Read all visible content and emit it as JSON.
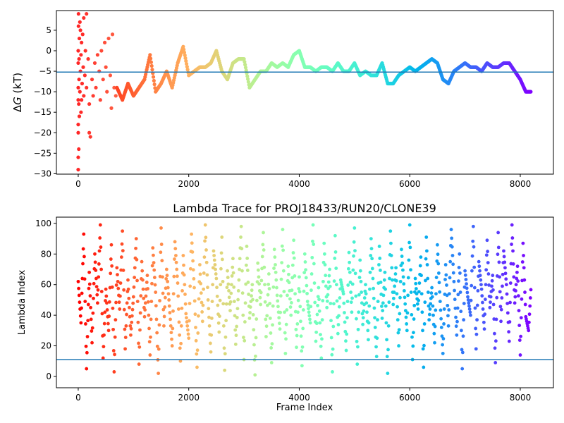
{
  "chart_data": [
    {
      "type": "scatter",
      "title": "",
      "xlabel": "",
      "ylabel": "ΔG (kT)",
      "ylabel_parts": {
        "delta": "Δ",
        "var": "G",
        "unit": " (kT)"
      },
      "xlim": [
        -395,
        8600
      ],
      "ylim": [
        -30.1,
        9.8
      ],
      "xticks": [
        0,
        2000,
        4000,
        6000,
        8000
      ],
      "yticks": [
        5,
        0,
        -5,
        -10,
        -15,
        -20,
        -25,
        -30
      ],
      "grid": false,
      "colormap": "rainbow (reversed by frame index)",
      "hline": {
        "y": -5.2,
        "color": "#1f77b4"
      },
      "early_points": [
        [
          0,
          -29
        ],
        [
          0,
          -26
        ],
        [
          0,
          -20
        ],
        [
          0,
          -18
        ],
        [
          0,
          -12
        ],
        [
          0,
          -9
        ],
        [
          0,
          -3
        ],
        [
          0,
          0
        ],
        [
          5,
          6
        ],
        [
          5,
          9
        ],
        [
          10,
          -24
        ],
        [
          10,
          -13
        ],
        [
          15,
          -7
        ],
        [
          15,
          -2
        ],
        [
          20,
          3
        ],
        [
          20,
          -16
        ],
        [
          30,
          7
        ],
        [
          30,
          -10
        ],
        [
          40,
          -5
        ],
        [
          40,
          5
        ],
        [
          50,
          -15
        ],
        [
          50,
          -1
        ],
        [
          60,
          2
        ],
        [
          60,
          -12
        ],
        [
          70,
          -8
        ],
        [
          80,
          4
        ],
        [
          90,
          -4
        ],
        [
          100,
          8
        ],
        [
          100,
          -11
        ],
        [
          120,
          -6
        ],
        [
          130,
          0
        ],
        [
          150,
          9
        ],
        [
          150,
          -9
        ],
        [
          180,
          -2
        ],
        [
          200,
          -13
        ],
        [
          200,
          -20
        ],
        [
          220,
          -21
        ],
        [
          250,
          -7
        ],
        [
          270,
          -11
        ],
        [
          300,
          -3
        ],
        [
          320,
          -9
        ],
        [
          350,
          -1
        ],
        [
          380,
          -5
        ],
        [
          400,
          -12
        ],
        [
          420,
          0
        ],
        [
          450,
          -7
        ],
        [
          480,
          2
        ],
        [
          500,
          -4
        ],
        [
          520,
          -10
        ],
        [
          550,
          3
        ],
        [
          580,
          -6
        ],
        [
          600,
          -14
        ],
        [
          620,
          4
        ],
        [
          650,
          -9
        ],
        [
          680,
          -11
        ]
      ],
      "trace": {
        "x": [
          700,
          800,
          900,
          1000,
          1100,
          1200,
          1300,
          1400,
          1500,
          1600,
          1700,
          1800,
          1900,
          2000,
          2100,
          2200,
          2300,
          2400,
          2500,
          2600,
          2700,
          2800,
          2900,
          3000,
          3100,
          3200,
          3300,
          3400,
          3500,
          3600,
          3700,
          3800,
          3900,
          4000,
          4100,
          4200,
          4300,
          4400,
          4500,
          4600,
          4700,
          4800,
          4900,
          5000,
          5100,
          5200,
          5300,
          5400,
          5500,
          5600,
          5700,
          5800,
          5900,
          6000,
          6100,
          6200,
          6300,
          6400,
          6500,
          6600,
          6700,
          6800,
          6900,
          7000,
          7100,
          7200,
          7300,
          7400,
          7500,
          7600,
          7700,
          7800,
          7900,
          8000,
          8100,
          8200
        ],
        "y": [
          -9,
          -12,
          -8,
          -11,
          -9,
          -7,
          -1,
          -10,
          -8,
          -5,
          -9,
          -3,
          1,
          -6,
          -5,
          -4,
          -4,
          -3,
          0,
          -5,
          -7,
          -3,
          -2,
          -2,
          -9,
          -7,
          -5,
          -5,
          -3,
          -4,
          -3,
          -4,
          -1,
          0,
          -4,
          -4,
          -5,
          -4,
          -4,
          -5,
          -3,
          -5,
          -5,
          -3,
          -6,
          -5,
          -6,
          -6,
          -3,
          -8,
          -8,
          -6,
          -5,
          -4,
          -5,
          -4,
          -3,
          -2,
          -3,
          -7,
          -8,
          -5,
          -4,
          -3,
          -4,
          -4,
          -5,
          -3,
          -4,
          -4,
          -3,
          -3,
          -5,
          -7,
          -10,
          -10
        ]
      }
    },
    {
      "type": "scatter",
      "title": "Lambda Trace for PROJ18433/RUN20/CLONE39",
      "xlabel": "Frame Index",
      "ylabel": "Lambda Index",
      "xlim": [
        -395,
        8600
      ],
      "ylim": [
        -7.4,
        104.1
      ],
      "xticks": [
        0,
        2000,
        4000,
        6000,
        8000
      ],
      "yticks": [
        0,
        20,
        40,
        60,
        80,
        100
      ],
      "grid": false,
      "colormap": "rainbow (reversed by frame index)",
      "hline": {
        "y": 11,
        "color": "#1f77b4"
      },
      "x_step": 50,
      "lambda": [
        62,
        35,
        93,
        5,
        68,
        22,
        80,
        48,
        99,
        12,
        57,
        30,
        86,
        3,
        71,
        44,
        95,
        18,
        63,
        27,
        52,
        90,
        8,
        75,
        39,
        66,
        14,
        84,
        55,
        2,
        97,
        33,
        70,
        46,
        20,
        88,
        61,
        10,
        79,
        41,
        25,
        93,
        58,
        6,
        73,
        36,
        99,
        50,
        16,
        82,
        64,
        29,
        91,
        4,
        69,
        43,
        77,
        21,
        56,
        98,
        11,
        85,
        38,
        60,
        1,
        74,
        47,
        94,
        26,
        67,
        9,
        83,
        53,
        31,
        96,
        15,
        72,
        40,
        89,
        19,
        65,
        7,
        80,
        49,
        35,
        99,
        23,
        58,
        12,
        87,
        45,
        70,
        3,
        92,
        28,
        63,
        54,
        17,
        81,
        42,
        97,
        8,
        76,
        34,
        60,
        24,
        90,
        51,
        13,
        85,
        38,
        68,
        2,
        95,
        47,
        71,
        20,
        83,
        56,
        30,
        99,
        11,
        64,
        44,
        78,
        6,
        91,
        37,
        58,
        22,
        86,
        49,
        15,
        73,
        33,
        96,
        62,
        27,
        80,
        5,
        69,
        52,
        40,
        98,
        18,
        75,
        57,
        31,
        89,
        45,
        66,
        9,
        94,
        36,
        82,
        60,
        23,
        99,
        48,
        72,
        14,
        87,
        39,
        30
      ]
    }
  ]
}
